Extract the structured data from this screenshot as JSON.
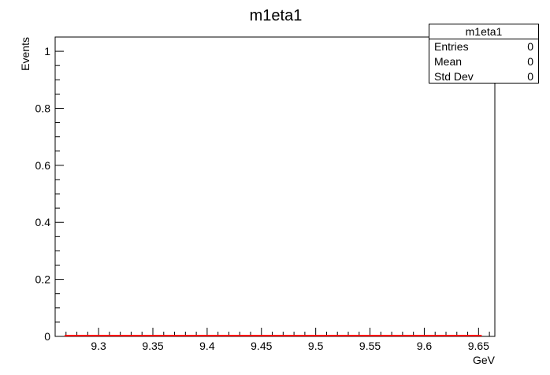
{
  "chart_data": {
    "type": "bar",
    "title": "m1eta1",
    "xlabel": "GeV",
    "ylabel": "Events",
    "xlim": [
      9.26,
      9.665
    ],
    "ylim": [
      0,
      1.05
    ],
    "x_ticks": [
      9.3,
      9.35,
      9.4,
      9.45,
      9.5,
      9.55,
      9.6,
      9.65
    ],
    "x_tick_labels": [
      "9.3",
      "9.35",
      "9.4",
      "9.45",
      "9.5",
      "9.55",
      "9.6",
      "9.65"
    ],
    "y_ticks": [
      0,
      0.2,
      0.4,
      0.6,
      0.8,
      1
    ],
    "y_tick_labels": [
      "0",
      "0.2",
      "0.4",
      "0.6",
      "0.8",
      "1"
    ],
    "series": [
      {
        "color": "#ff0000",
        "values": [
          0
        ]
      }
    ],
    "grid": false,
    "stats_box": {
      "title": "m1eta1",
      "rows": [
        {
          "label": "Entries",
          "value": "0"
        },
        {
          "label": "Mean",
          "value": "0"
        },
        {
          "label": "Std Dev",
          "value": "0"
        }
      ],
      "placement": "top-right"
    }
  }
}
